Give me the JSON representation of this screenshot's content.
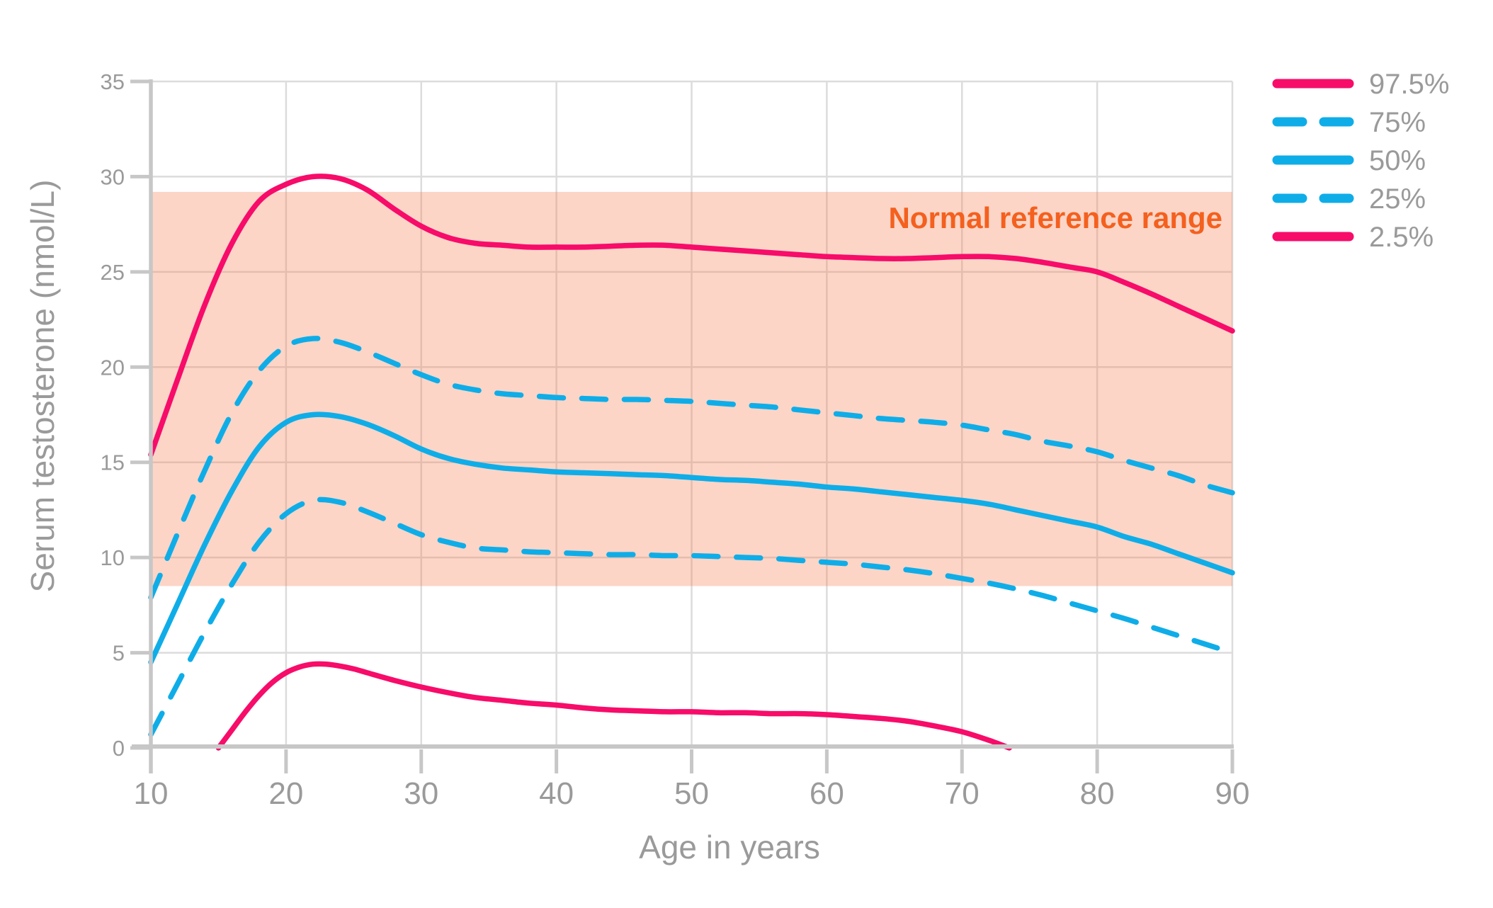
{
  "chart_data": {
    "type": "line",
    "title": "",
    "xlabel": "Age in years",
    "ylabel": "Serum testosterone (nmol/L)",
    "xlim": [
      10,
      90
    ],
    "ylim": [
      0,
      35
    ],
    "xticks": [
      10,
      20,
      30,
      40,
      50,
      60,
      70,
      80,
      90
    ],
    "yticks": [
      0,
      5,
      10,
      15,
      20,
      25,
      30,
      35
    ],
    "grid": true,
    "legend_position": "top-right-outside",
    "band": {
      "label": "Normal reference range",
      "from": 8.5,
      "to": 29.2,
      "fill": "#f68054",
      "fill_opacity": 0.33,
      "label_color": "#f4601e"
    },
    "series": [
      {
        "name": "97.5%",
        "style": "solid",
        "color": "#f70c6a",
        "points": [
          [
            10,
            15.4
          ],
          [
            12,
            19.4
          ],
          [
            14,
            23.3
          ],
          [
            16,
            26.5
          ],
          [
            18,
            28.7
          ],
          [
            20,
            29.6
          ],
          [
            22,
            30.0
          ],
          [
            24,
            29.9
          ],
          [
            26,
            29.3
          ],
          [
            28,
            28.3
          ],
          [
            30,
            27.4
          ],
          [
            32,
            26.8
          ],
          [
            34,
            26.5
          ],
          [
            36,
            26.4
          ],
          [
            38,
            26.3
          ],
          [
            40,
            26.3
          ],
          [
            42,
            26.3
          ],
          [
            44,
            26.35
          ],
          [
            46,
            26.4
          ],
          [
            48,
            26.4
          ],
          [
            50,
            26.3
          ],
          [
            52,
            26.2
          ],
          [
            54,
            26.1
          ],
          [
            56,
            26.0
          ],
          [
            58,
            25.9
          ],
          [
            60,
            25.8
          ],
          [
            62,
            25.75
          ],
          [
            64,
            25.7
          ],
          [
            66,
            25.7
          ],
          [
            68,
            25.75
          ],
          [
            70,
            25.8
          ],
          [
            72,
            25.8
          ],
          [
            74,
            25.7
          ],
          [
            76,
            25.5
          ],
          [
            78,
            25.25
          ],
          [
            80,
            25.0
          ],
          [
            82,
            24.45
          ],
          [
            84,
            23.85
          ],
          [
            86,
            23.2
          ],
          [
            88,
            22.55
          ],
          [
            90,
            21.9
          ]
        ]
      },
      {
        "name": "75%",
        "style": "dashed",
        "color": "#0fade8",
        "points": [
          [
            10,
            7.9
          ],
          [
            12,
            11.3
          ],
          [
            14,
            14.6
          ],
          [
            16,
            17.6
          ],
          [
            18,
            19.8
          ],
          [
            20,
            21.1
          ],
          [
            22,
            21.5
          ],
          [
            24,
            21.3
          ],
          [
            26,
            20.8
          ],
          [
            28,
            20.2
          ],
          [
            30,
            19.6
          ],
          [
            32,
            19.1
          ],
          [
            34,
            18.8
          ],
          [
            36,
            18.6
          ],
          [
            38,
            18.5
          ],
          [
            40,
            18.4
          ],
          [
            42,
            18.35
          ],
          [
            44,
            18.3
          ],
          [
            46,
            18.3
          ],
          [
            48,
            18.25
          ],
          [
            50,
            18.2
          ],
          [
            52,
            18.1
          ],
          [
            54,
            18.0
          ],
          [
            56,
            17.9
          ],
          [
            58,
            17.75
          ],
          [
            60,
            17.6
          ],
          [
            62,
            17.45
          ],
          [
            64,
            17.3
          ],
          [
            66,
            17.2
          ],
          [
            68,
            17.1
          ],
          [
            70,
            16.95
          ],
          [
            72,
            16.7
          ],
          [
            74,
            16.45
          ],
          [
            76,
            16.1
          ],
          [
            78,
            15.85
          ],
          [
            80,
            15.55
          ],
          [
            82,
            15.1
          ],
          [
            84,
            14.7
          ],
          [
            86,
            14.3
          ],
          [
            88,
            13.8
          ],
          [
            90,
            13.4
          ]
        ]
      },
      {
        "name": "50%",
        "style": "solid",
        "color": "#0fade8",
        "points": [
          [
            10,
            4.5
          ],
          [
            12,
            7.6
          ],
          [
            14,
            10.7
          ],
          [
            16,
            13.5
          ],
          [
            18,
            15.8
          ],
          [
            20,
            17.1
          ],
          [
            22,
            17.5
          ],
          [
            24,
            17.4
          ],
          [
            26,
            17.0
          ],
          [
            28,
            16.4
          ],
          [
            30,
            15.7
          ],
          [
            32,
            15.2
          ],
          [
            34,
            14.9
          ],
          [
            36,
            14.7
          ],
          [
            38,
            14.6
          ],
          [
            40,
            14.5
          ],
          [
            42,
            14.45
          ],
          [
            44,
            14.4
          ],
          [
            46,
            14.35
          ],
          [
            48,
            14.3
          ],
          [
            50,
            14.2
          ],
          [
            52,
            14.1
          ],
          [
            54,
            14.05
          ],
          [
            56,
            13.95
          ],
          [
            58,
            13.85
          ],
          [
            60,
            13.7
          ],
          [
            62,
            13.6
          ],
          [
            64,
            13.45
          ],
          [
            66,
            13.3
          ],
          [
            68,
            13.15
          ],
          [
            70,
            13.0
          ],
          [
            72,
            12.8
          ],
          [
            74,
            12.5
          ],
          [
            76,
            12.2
          ],
          [
            78,
            11.9
          ],
          [
            80,
            11.6
          ],
          [
            82,
            11.1
          ],
          [
            84,
            10.7
          ],
          [
            86,
            10.2
          ],
          [
            88,
            9.7
          ],
          [
            90,
            9.2
          ]
        ]
      },
      {
        "name": "25%",
        "style": "dashed",
        "color": "#0fade8",
        "points": [
          [
            10,
            0.7
          ],
          [
            12,
            3.4
          ],
          [
            14,
            6.1
          ],
          [
            16,
            8.6
          ],
          [
            18,
            10.8
          ],
          [
            20,
            12.3
          ],
          [
            22,
            13.0
          ],
          [
            24,
            12.9
          ],
          [
            26,
            12.4
          ],
          [
            28,
            11.8
          ],
          [
            30,
            11.2
          ],
          [
            32,
            10.8
          ],
          [
            34,
            10.5
          ],
          [
            36,
            10.4
          ],
          [
            38,
            10.3
          ],
          [
            40,
            10.25
          ],
          [
            42,
            10.2
          ],
          [
            44,
            10.15
          ],
          [
            46,
            10.15
          ],
          [
            48,
            10.1
          ],
          [
            50,
            10.1
          ],
          [
            52,
            10.05
          ],
          [
            54,
            10.0
          ],
          [
            56,
            9.95
          ],
          [
            58,
            9.85
          ],
          [
            60,
            9.75
          ],
          [
            62,
            9.65
          ],
          [
            64,
            9.5
          ],
          [
            66,
            9.35
          ],
          [
            68,
            9.15
          ],
          [
            70,
            8.9
          ],
          [
            72,
            8.65
          ],
          [
            74,
            8.35
          ],
          [
            76,
            8.0
          ],
          [
            78,
            7.6
          ],
          [
            80,
            7.2
          ],
          [
            82,
            6.8
          ],
          [
            84,
            6.35
          ],
          [
            86,
            5.9
          ],
          [
            88,
            5.45
          ],
          [
            90,
            5.0
          ]
        ]
      },
      {
        "name": "2.5%",
        "style": "solid",
        "color": "#f70c6a",
        "points": [
          [
            15,
            0.0
          ],
          [
            16,
            0.95
          ],
          [
            17,
            1.9
          ],
          [
            18,
            2.75
          ],
          [
            19,
            3.45
          ],
          [
            20,
            3.95
          ],
          [
            21,
            4.25
          ],
          [
            22,
            4.4
          ],
          [
            23,
            4.4
          ],
          [
            24,
            4.3
          ],
          [
            25,
            4.15
          ],
          [
            26,
            3.95
          ],
          [
            28,
            3.55
          ],
          [
            30,
            3.2
          ],
          [
            32,
            2.9
          ],
          [
            34,
            2.65
          ],
          [
            36,
            2.5
          ],
          [
            38,
            2.35
          ],
          [
            40,
            2.25
          ],
          [
            42,
            2.1
          ],
          [
            44,
            2.0
          ],
          [
            46,
            1.95
          ],
          [
            48,
            1.9
          ],
          [
            50,
            1.9
          ],
          [
            52,
            1.85
          ],
          [
            54,
            1.85
          ],
          [
            56,
            1.8
          ],
          [
            58,
            1.8
          ],
          [
            60,
            1.75
          ],
          [
            62,
            1.65
          ],
          [
            64,
            1.55
          ],
          [
            66,
            1.4
          ],
          [
            68,
            1.15
          ],
          [
            70,
            0.85
          ],
          [
            72,
            0.4
          ],
          [
            73.5,
            0.0
          ]
        ]
      }
    ],
    "legend": [
      {
        "label": "97.5%",
        "style": "solid",
        "color": "#f70c6a"
      },
      {
        "label": "75%",
        "style": "dashed",
        "color": "#0fade8"
      },
      {
        "label": "50%",
        "style": "solid",
        "color": "#0fade8"
      },
      {
        "label": "25%",
        "style": "dashed",
        "color": "#0fade8"
      },
      {
        "label": "2.5%",
        "style": "solid",
        "color": "#f70c6a"
      }
    ]
  },
  "colors": {
    "grid": "#dcdcdc",
    "axis": "#c7c7c7",
    "text": "#9a9a9a",
    "background": "#ffffff"
  }
}
